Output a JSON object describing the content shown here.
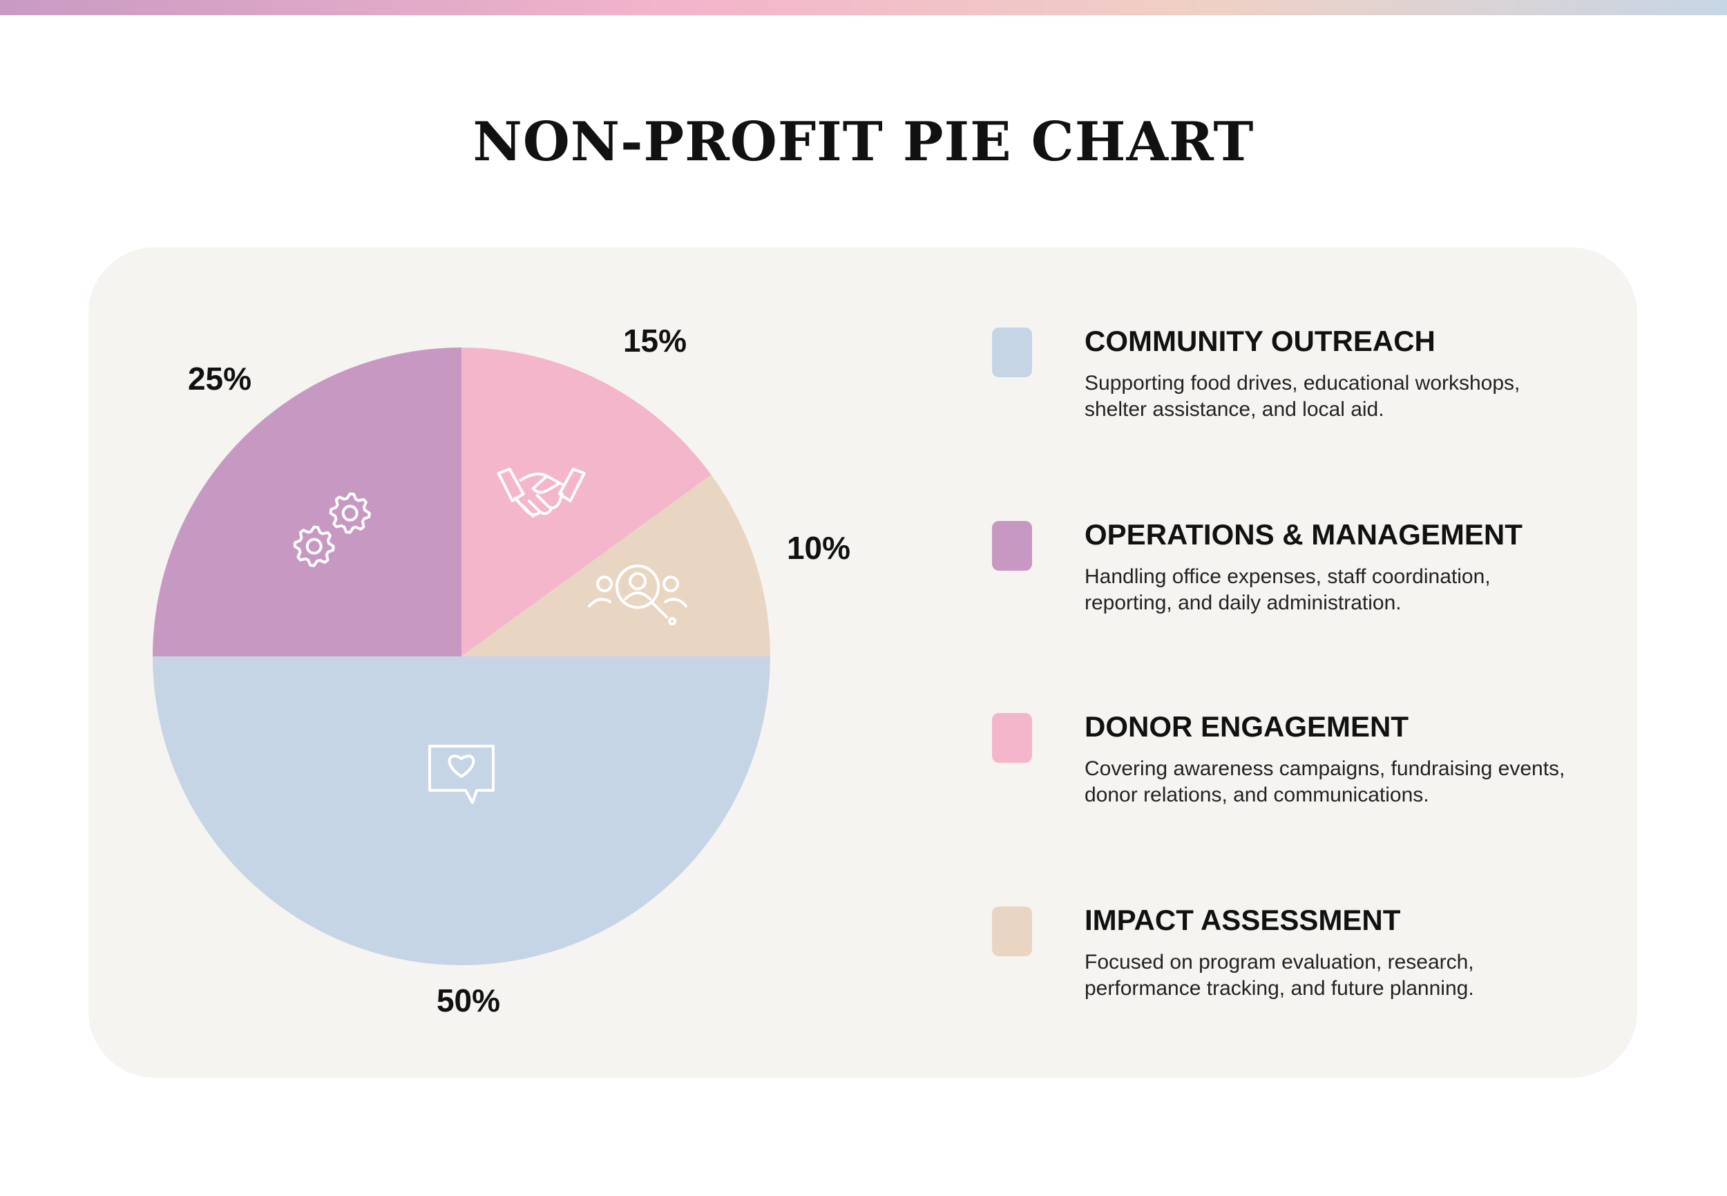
{
  "title": "NON-PROFIT PIE CHART",
  "colors": {
    "community_outreach": "#c5d5e6",
    "operations_management": "#c799c2",
    "donor_engagement": "#f4b6cb",
    "impact_assessment": "#e8d6c2",
    "panel": "#f6f4f1"
  },
  "chart_data": {
    "type": "pie",
    "title": "NON-PROFIT PIE CHART",
    "slices": [
      {
        "name": "DONOR ENGAGEMENT",
        "value": 15,
        "label": "15%",
        "color": "#f4b6cb",
        "icon": "handshake-icon"
      },
      {
        "name": "IMPACT ASSESSMENT",
        "value": 10,
        "label": "10%",
        "color": "#e8d6c2",
        "icon": "people-search-icon"
      },
      {
        "name": "COMMUNITY OUTREACH",
        "value": 50,
        "label": "50%",
        "color": "#c5d5e6",
        "icon": "heart-message-icon"
      },
      {
        "name": "OPERATIONS & MANAGEMENT",
        "value": 25,
        "label": "25%",
        "color": "#c799c2",
        "icon": "gears-icon"
      }
    ],
    "legend_placement": "right"
  },
  "legend": {
    "items": [
      {
        "title": "COMMUNITY OUTREACH",
        "description": "Supporting food drives, educational workshops, shelter assistance, and local aid.",
        "color": "#c5d5e6"
      },
      {
        "title": "OPERATIONS & MANAGEMENT",
        "description": "Handling office expenses, staff coordination, reporting, and daily administration.",
        "color": "#c799c2"
      },
      {
        "title": "DONOR ENGAGEMENT",
        "description": "Covering awareness campaigns, fundraising events, donor relations, and communications.",
        "color": "#f4b6cb"
      },
      {
        "title": "IMPACT ASSESSMENT",
        "description": "Focused on program evaluation, research, performance tracking, and future planning.",
        "color": "#e8d6c2"
      }
    ]
  }
}
